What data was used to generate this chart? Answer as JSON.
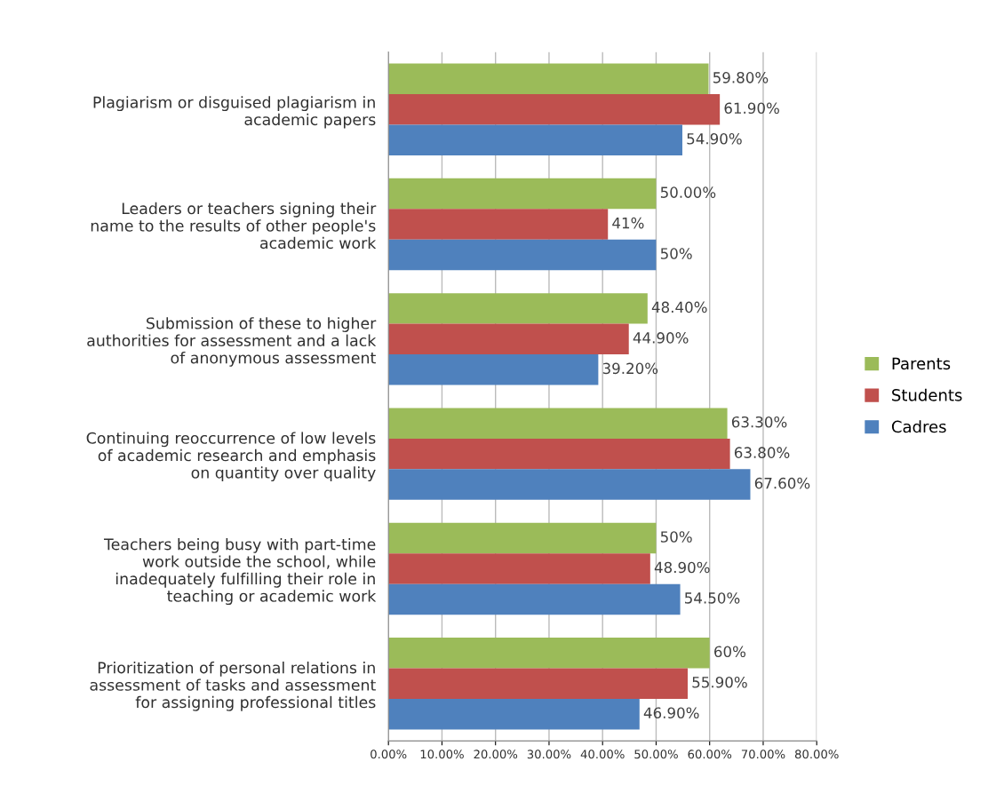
{
  "chart_data": {
    "type": "bar",
    "orientation": "horizontal",
    "categories": [
      "Plagiarism or disguised plagiarism in\nacademic papers",
      "Leaders or teachers signing their\nname to the results of other people's\nacademic work",
      "Submission of these to higher\nauthorities for assessment and a lack\nof anonymous assessment",
      "Continuing reoccurrence of low levels\nof academic research and emphasis\non quantity over quality",
      "Teachers being busy with part-time\nwork outside the school, while\ninadequately fulfilling their role in\nteaching or academic work",
      "Prioritization of personal relations in\nassessment of tasks and assessment\nfor assigning professional titles"
    ],
    "series": [
      {
        "name": "Parents",
        "color": "#9bbb59",
        "values": [
          59.8,
          50,
          48.4,
          63.3,
          50,
          60
        ],
        "value_labels": [
          "59.80%",
          "50.00%",
          "48.40%",
          "63.30%",
          "50%",
          "60%"
        ]
      },
      {
        "name": "Students",
        "color": "#c0504d",
        "values": [
          61.9,
          41,
          44.9,
          63.8,
          48.9,
          55.9
        ],
        "value_labels": [
          "61.90%",
          "41%",
          "44.90%",
          "63.80%",
          "48.90%",
          "55.90%"
        ]
      },
      {
        "name": "Cadres",
        "color": "#4f81bd",
        "values": [
          54.9,
          50,
          39.2,
          67.6,
          54.5,
          46.9
        ],
        "value_labels": [
          "54.90%",
          "50%",
          "39.20%",
          "67.60%",
          "54.50%",
          "46.90%"
        ]
      }
    ],
    "xlim": [
      0,
      80
    ],
    "xticks": [
      {
        "value": 0,
        "label": "0.00%"
      },
      {
        "value": 10,
        "label": "10.00%"
      },
      {
        "value": 20,
        "label": "20.00%"
      },
      {
        "value": 30,
        "label": "30.00%"
      },
      {
        "value": 40,
        "label": "40.00%"
      },
      {
        "value": 50,
        "label": "50.00%"
      },
      {
        "value": 60,
        "label": "60.00%"
      },
      {
        "value": 70,
        "label": "70.00%"
      },
      {
        "value": 80,
        "label": "80.00%"
      }
    ],
    "grid": "x",
    "legend": "right"
  }
}
